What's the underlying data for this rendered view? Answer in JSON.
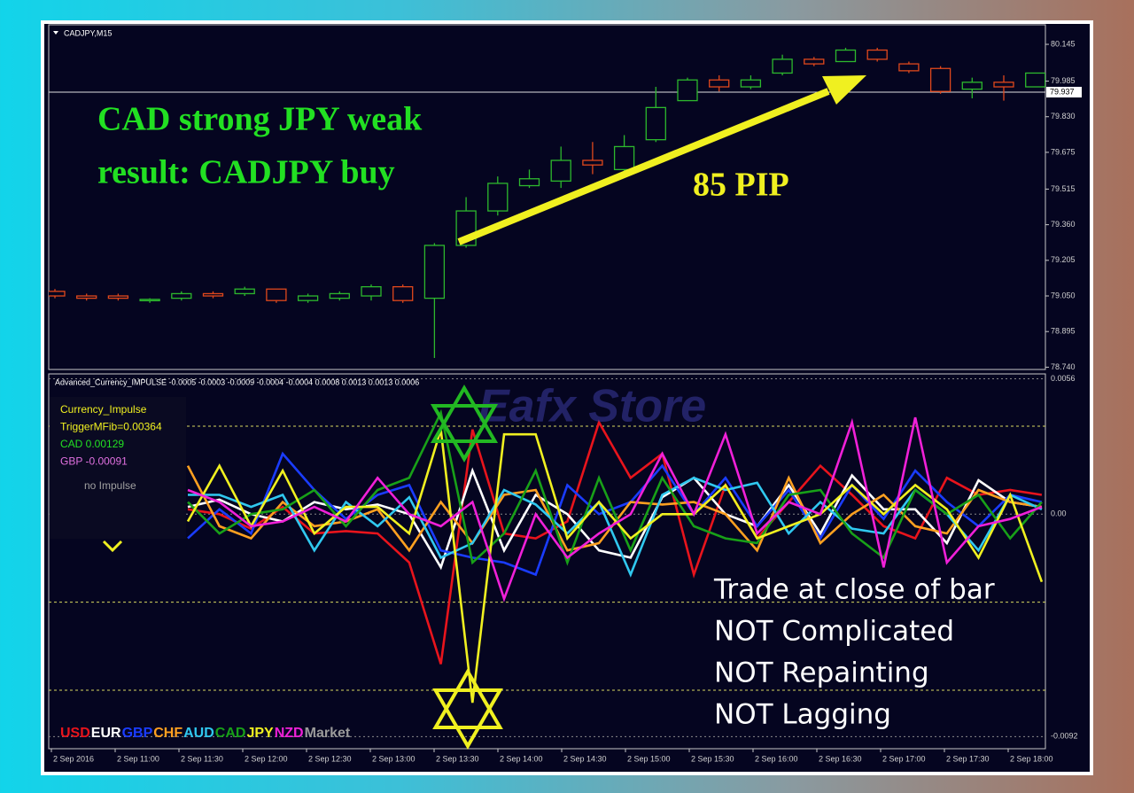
{
  "main_chart": {
    "symbol": "CADJPY,M15",
    "ylim": [
      78.73,
      80.23
    ],
    "yticks": [
      80.145,
      79.985,
      {
        "value": 79.83,
        "label": "79.830"
      },
      79.675,
      79.515,
      {
        "value": 79.36,
        "label": "79.360"
      },
      79.205,
      {
        "value": 79.05,
        "label": "79.050"
      },
      78.895,
      {
        "value": 78.74,
        "label": "78.740"
      }
    ],
    "current_price": 79.937,
    "up_color": "#2db82d",
    "down_color": "#e0481c",
    "candles": [
      {
        "o": 79.07,
        "h": 79.08,
        "l": 79.04,
        "c": 79.05
      },
      {
        "o": 79.05,
        "h": 79.06,
        "l": 79.03,
        "c": 79.04
      },
      {
        "o": 79.05,
        "h": 79.06,
        "l": 79.03,
        "c": 79.04
      },
      {
        "o": 79.03,
        "h": 79.04,
        "l": 79.02,
        "c": 79.035
      },
      {
        "o": 79.04,
        "h": 79.07,
        "l": 79.03,
        "c": 79.06
      },
      {
        "o": 79.06,
        "h": 79.07,
        "l": 79.04,
        "c": 79.05
      },
      {
        "o": 79.06,
        "h": 79.09,
        "l": 79.05,
        "c": 79.08
      },
      {
        "o": 79.08,
        "h": 79.08,
        "l": 79.02,
        "c": 79.03
      },
      {
        "o": 79.03,
        "h": 79.06,
        "l": 79.02,
        "c": 79.05
      },
      {
        "o": 79.04,
        "h": 79.07,
        "l": 79.03,
        "c": 79.06
      },
      {
        "o": 79.05,
        "h": 79.1,
        "l": 79.03,
        "c": 79.09
      },
      {
        "o": 79.09,
        "h": 79.1,
        "l": 79.02,
        "c": 79.03
      },
      {
        "o": 79.04,
        "h": 79.28,
        "l": 78.78,
        "c": 79.27
      },
      {
        "o": 79.27,
        "h": 79.48,
        "l": 79.26,
        "c": 79.42
      },
      {
        "o": 79.42,
        "h": 79.57,
        "l": 79.4,
        "c": 79.54
      },
      {
        "o": 79.53,
        "h": 79.6,
        "l": 79.52,
        "c": 79.56
      },
      {
        "o": 79.55,
        "h": 79.7,
        "l": 79.52,
        "c": 79.64
      },
      {
        "o": 79.64,
        "h": 79.72,
        "l": 79.58,
        "c": 79.62
      },
      {
        "o": 79.6,
        "h": 79.75,
        "l": 79.58,
        "c": 79.7
      },
      {
        "o": 79.73,
        "h": 79.96,
        "l": 79.72,
        "c": 79.87
      },
      {
        "o": 79.9,
        "h": 80.0,
        "l": 79.9,
        "c": 79.99
      },
      {
        "o": 79.99,
        "h": 80.01,
        "l": 79.94,
        "c": 79.96
      },
      {
        "o": 79.96,
        "h": 80.01,
        "l": 79.95,
        "c": 79.99
      },
      {
        "o": 80.02,
        "h": 80.1,
        "l": 80.01,
        "c": 80.08
      },
      {
        "o": 80.08,
        "h": 80.09,
        "l": 80.05,
        "c": 80.06
      },
      {
        "o": 80.07,
        "h": 80.13,
        "l": 80.07,
        "c": 80.12
      },
      {
        "o": 80.12,
        "h": 80.13,
        "l": 80.07,
        "c": 80.08
      },
      {
        "o": 80.06,
        "h": 80.07,
        "l": 80.02,
        "c": 80.03
      },
      {
        "o": 80.04,
        "h": 80.05,
        "l": 79.93,
        "c": 79.94
      },
      {
        "o": 79.95,
        "h": 80.0,
        "l": 79.91,
        "c": 79.98
      },
      {
        "o": 79.98,
        "h": 80.01,
        "l": 79.9,
        "c": 79.96
      },
      {
        "o": 79.96,
        "h": 80.02,
        "l": 79.96,
        "c": 80.02
      }
    ],
    "annotations": [
      "CAD strong JPY weak",
      "result: CADJPY buy",
      "85 PIP"
    ]
  },
  "indicator": {
    "header": "Advanced_Currency_IMPULSE -0.0005 -0.0003 -0.0009 -0.0004 -0.0004 0.0008 0.0013 0.0013 0.0006",
    "ylim": [
      -0.0097,
      0.0058
    ],
    "yticks": [
      0.0056,
      {
        "value": 0,
        "label": "0.00"
      },
      -0.0092
    ],
    "levels": [
      0.00364,
      -0.00364,
      -0.00728
    ],
    "info": [
      "Currency_Impulse",
      "TriggerMFib=0.00364",
      "CAD 0.00129",
      "GBP -0.00091",
      "no Impulse"
    ],
    "series": [
      {
        "name": "USD",
        "color": "#e8141c",
        "values": [
          0.0002,
          0.0,
          -0.0006,
          0.0003,
          -0.0008,
          -0.0007,
          -0.0008,
          -0.002,
          -0.0062,
          0.0035,
          -0.0008,
          -0.001,
          -0.0003,
          0.0038,
          0.0015,
          0.0025,
          -0.0025,
          0.0012,
          -0.001,
          0.0005,
          0.002,
          0.0008,
          -0.0005,
          -0.001,
          0.0015,
          0.0008,
          0.001,
          0.0008
        ]
      },
      {
        "name": "EUR",
        "color": "#ffffff",
        "values": [
          0.0003,
          0.0006,
          0.0,
          -0.0003,
          0.0005,
          0.0002,
          0.0004,
          0.0,
          -0.0022,
          0.0018,
          -0.0015,
          0.0008,
          0.0,
          -0.0015,
          -0.0018,
          0.0007,
          0.0015,
          0.0,
          -0.0005,
          0.0012,
          -0.0008,
          0.0016,
          0.0002,
          0.0002,
          -0.0012,
          0.0014,
          0.0005,
          0.0003
        ]
      },
      {
        "name": "GBP",
        "color": "#1a3cff",
        "values": [
          -0.001,
          0.0002,
          -0.0008,
          0.0025,
          0.001,
          -0.0002,
          0.0008,
          0.0012,
          -0.0015,
          -0.0018,
          -0.002,
          -0.0025,
          0.0012,
          0.0,
          0.0005,
          0.002,
          0.0,
          0.0015,
          -0.0005,
          0.001,
          -0.001,
          0.0012,
          -0.0002,
          0.0018,
          0.0005,
          -0.0005,
          0.0008,
          0.0005
        ]
      },
      {
        "name": "CHF",
        "color": "#ffa020",
        "values": [
          0.002,
          -0.0005,
          -0.001,
          0.0005,
          -0.0005,
          -0.0003,
          0.0002,
          -0.0015,
          0.0005,
          -0.0012,
          0.0008,
          0.001,
          -0.0015,
          -0.0012,
          0.0005,
          0.0004,
          0.0005,
          0.0,
          -0.0015,
          0.0015,
          -0.0012,
          0.0,
          0.0008,
          -0.0005,
          -0.0008,
          0.001,
          0.0005,
          0.0003
        ]
      },
      {
        "name": "AUD",
        "color": "#30c8f0",
        "values": [
          0.0008,
          0.0008,
          0.0003,
          0.0008,
          -0.0015,
          0.0005,
          -0.0005,
          0.0007,
          -0.0018,
          -0.0012,
          0.001,
          0.0004,
          -0.0008,
          0.0005,
          -0.0025,
          0.0008,
          0.0015,
          0.001,
          0.0013,
          -0.0008,
          0.0005,
          -0.0006,
          -0.0008,
          0.001,
          0.0,
          -0.0015,
          0.0008,
          0.0002
        ]
      },
      {
        "name": "CAD",
        "color": "#18a018",
        "values": [
          0.0005,
          -0.0008,
          0.0,
          0.0002,
          0.001,
          -0.0005,
          0.001,
          0.0015,
          0.0042,
          -0.002,
          -0.0008,
          0.0018,
          -0.002,
          0.0015,
          -0.0015,
          0.0015,
          -0.0005,
          -0.001,
          -0.0012,
          0.0008,
          0.001,
          -0.0008,
          -0.0018,
          0.001,
          0.0,
          0.0008,
          -0.001,
          0.0005
        ]
      },
      {
        "name": "JPY",
        "color": "#f0f020",
        "values": [
          -0.0003,
          0.002,
          -0.0005,
          0.0018,
          -0.0008,
          0.0003,
          0.0003,
          -0.0008,
          0.0035,
          -0.0078,
          0.0033,
          0.0033,
          -0.001,
          0.0005,
          -0.001,
          0.0,
          0.0,
          0.0012,
          -0.001,
          -0.0005,
          0.0,
          0.0012,
          0.0,
          0.0012,
          0.0002,
          -0.0018,
          0.0008,
          -0.0028
        ]
      },
      {
        "name": "NZD",
        "color": "#f020d8",
        "values": [
          0.001,
          0.0005,
          -0.0005,
          -0.0003,
          0.0003,
          -0.0003,
          0.0015,
          0.0,
          -0.0005,
          0.0005,
          -0.0035,
          0.0,
          -0.0018,
          -0.0008,
          0.0,
          0.0025,
          0.0,
          0.0033,
          -0.0008,
          0.0005,
          0.0,
          0.0038,
          -0.0022,
          0.004,
          -0.002,
          -0.0005,
          -0.0002,
          0.0003
        ]
      }
    ],
    "market_label": "Market"
  },
  "time_labels": [
    "2 Sep 2016",
    "2 Sep 11:00",
    "2 Sep 11:30",
    "2 Sep 12:00",
    "2 Sep 12:30",
    "2 Sep 13:00",
    "2 Sep 13:30",
    "2 Sep 14:00",
    "2 Sep 14:30",
    "2 Sep 15:00",
    "2 Sep 15:30",
    "2 Sep 16:00",
    "2 Sep 16:30",
    "2 Sep 17:00",
    "2 Sep 17:30",
    "2 Sep 18:00"
  ],
  "watermark": "Eafx Store",
  "features": [
    "Trade at close of bar",
    "NOT Complicated",
    "NOT Repainting",
    "NOT Lagging"
  ]
}
